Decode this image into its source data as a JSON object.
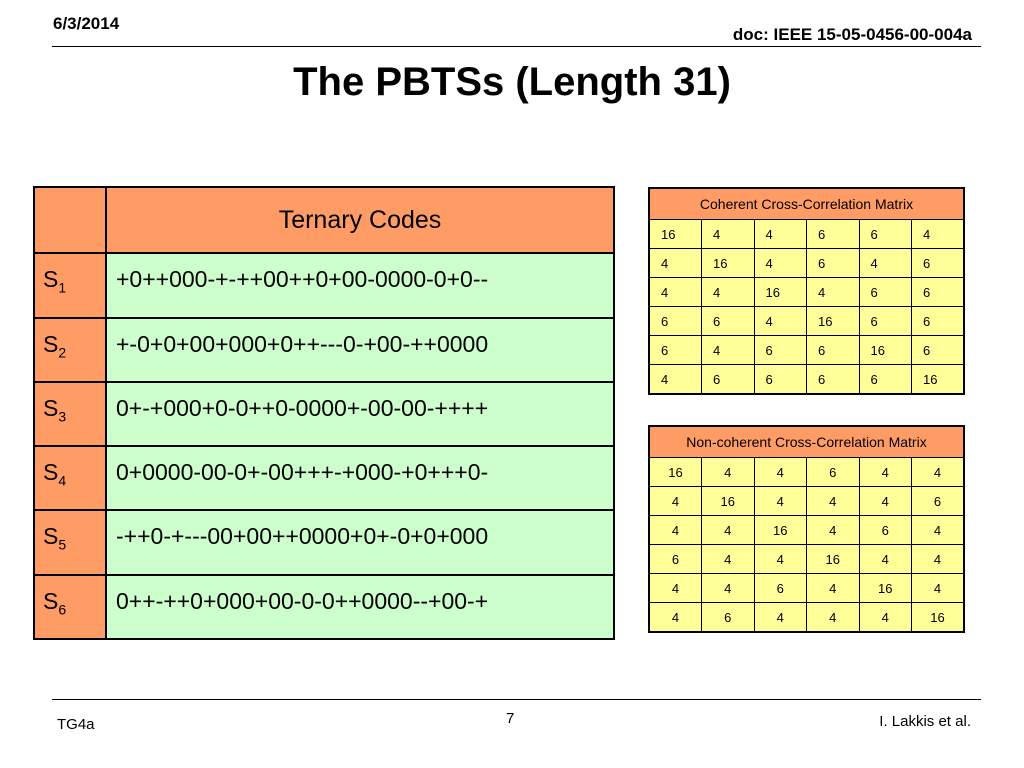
{
  "header": {
    "date": "6/3/2014",
    "doc": "doc: IEEE 15-05-0456-00-004a"
  },
  "title": "The PBTSs (Length 31)",
  "codes_table": {
    "header": "Ternary Codes",
    "rows": [
      {
        "label": "S",
        "sub": "1",
        "code": "+0++000-+-++00++0+00-0000-0+0--"
      },
      {
        "label": "S",
        "sub": "2",
        "code": "+-0+0+00+000+0++---0-+00-++0000"
      },
      {
        "label": "S",
        "sub": "3",
        "code": "0+-+000+0-0++0-0000+-00-00-++++"
      },
      {
        "label": "S",
        "sub": "4",
        "code": "0+0000-00-0+-00+++-+000-+0+++0-"
      },
      {
        "label": "S",
        "sub": "5",
        "code": "-++0-+---00+00++0000+0+-0+0+000"
      },
      {
        "label": "S",
        "sub": "6",
        "code": "0++-++0+000+00-0-0++0000--+00-+"
      }
    ]
  },
  "coherent_matrix": {
    "caption": "Coherent Cross-Correlation Matrix",
    "rows": [
      [
        "16",
        "4",
        "4",
        "6",
        "6",
        "4"
      ],
      [
        "4",
        "16",
        "4",
        "6",
        "4",
        "6"
      ],
      [
        "4",
        "4",
        "16",
        "4",
        "6",
        "6"
      ],
      [
        "6",
        "6",
        "4",
        "16",
        "6",
        "6"
      ],
      [
        "6",
        "4",
        "6",
        "6",
        "16",
        "6"
      ],
      [
        "4",
        "6",
        "6",
        "6",
        "6",
        "16"
      ]
    ]
  },
  "noncoherent_matrix": {
    "caption": "Non-coherent Cross-Correlation Matrix",
    "rows": [
      [
        "16",
        "4",
        "4",
        "6",
        "4",
        "4"
      ],
      [
        "4",
        "16",
        "4",
        "4",
        "4",
        "6"
      ],
      [
        "4",
        "4",
        "16",
        "4",
        "6",
        "4"
      ],
      [
        "6",
        "4",
        "4",
        "16",
        "4",
        "4"
      ],
      [
        "4",
        "4",
        "6",
        "4",
        "16",
        "4"
      ],
      [
        "4",
        "6",
        "4",
        "4",
        "4",
        "16"
      ]
    ]
  },
  "footer": {
    "left": "TG4a",
    "page": "7",
    "right": "I. Lakkis et al."
  }
}
